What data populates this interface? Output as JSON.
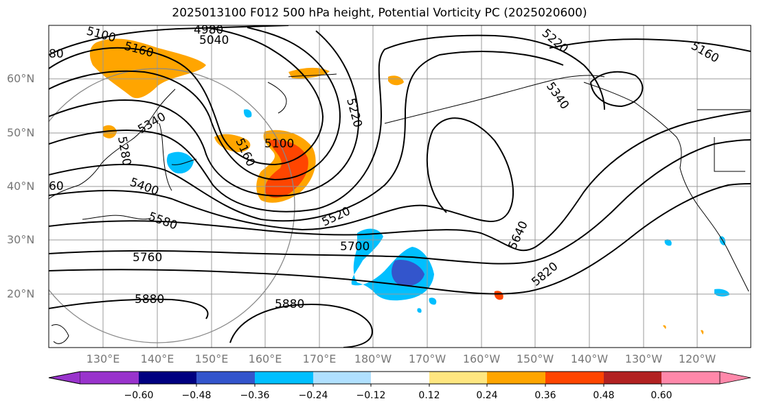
{
  "title": "2025013100 F012 500 hPa height, Potential Vorticity PC (2025020600)",
  "lat_labels": [
    "60°N",
    "50°N",
    "40°N",
    "30°N",
    "20°N"
  ],
  "lon_labels": [
    "130°E",
    "140°E",
    "150°E",
    "160°E",
    "170°E",
    "180°W",
    "170°W",
    "160°W",
    "150°W",
    "140°W",
    "130°W",
    "120°W"
  ],
  "contour_labels": [
    "5100",
    "4980",
    "5040",
    "5160",
    "5220",
    "5340",
    "5220",
    "5100",
    "5160",
    "5340",
    "5280",
    "5400",
    "5580",
    "5520",
    "5700",
    "5760",
    "5640",
    "5820",
    "5880",
    "5880",
    "5160",
    "80",
    "60"
  ],
  "colorbar": {
    "colors": [
      "#9933cc",
      "#000080",
      "#3355cc",
      "#00bfff",
      "#b0e0ff",
      "#ffffff",
      "#ffe680",
      "#ffa500",
      "#ff4500",
      "#b22222",
      "#ff88aa"
    ],
    "tick_labels": [
      "−0.60",
      "−0.48",
      "−0.36",
      "−0.24",
      "−0.12",
      "0.12",
      "0.24",
      "0.36",
      "0.48",
      "0.60"
    ]
  }
}
